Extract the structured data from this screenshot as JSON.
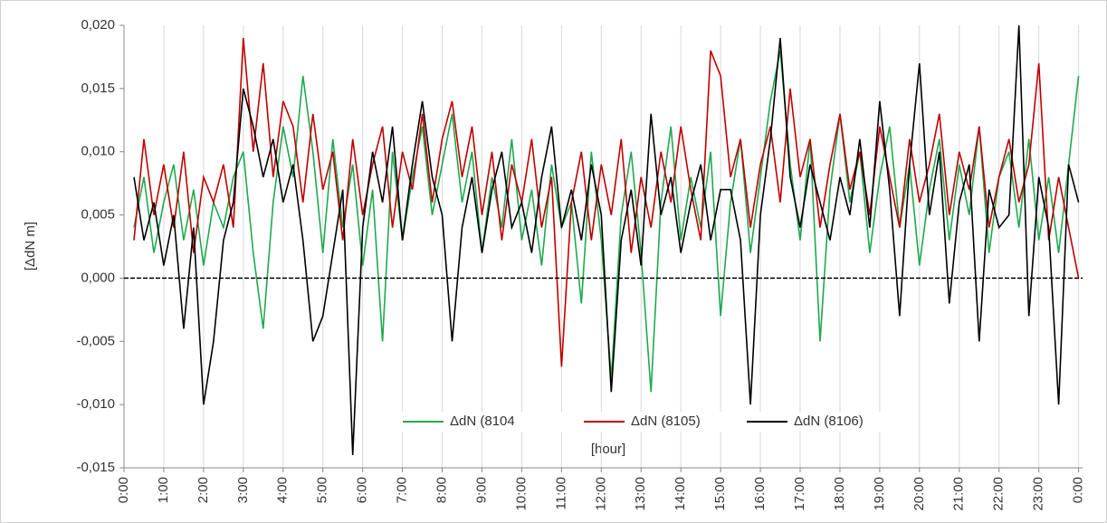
{
  "chart_data": {
    "type": "line",
    "y_label": "[ΔdN m]",
    "x_label": "[hour]",
    "x": [
      0.25,
      0.5,
      0.75,
      1,
      1.25,
      1.5,
      1.75,
      2,
      2.25,
      2.5,
      2.75,
      3,
      3.25,
      3.5,
      3.75,
      4,
      4.25,
      4.5,
      4.75,
      5,
      5.25,
      5.5,
      5.75,
      6,
      6.25,
      6.5,
      6.75,
      7,
      7.25,
      7.5,
      7.75,
      8,
      8.25,
      8.5,
      8.75,
      9,
      9.25,
      9.5,
      9.75,
      10,
      10.25,
      10.5,
      10.75,
      11,
      11.25,
      11.5,
      11.75,
      12,
      12.25,
      12.5,
      12.75,
      13,
      13.25,
      13.5,
      13.75,
      14,
      14.25,
      14.5,
      14.75,
      15,
      15.25,
      15.5,
      15.75,
      16,
      16.25,
      16.5,
      16.75,
      17,
      17.25,
      17.5,
      17.75,
      18,
      18.25,
      18.5,
      18.75,
      19,
      19.25,
      19.5,
      19.75,
      20,
      20.25,
      20.5,
      20.75,
      21,
      21.25,
      21.5,
      21.75,
      22,
      22.25,
      22.5,
      22.75,
      23,
      23.25,
      23.5,
      23.75,
      24
    ],
    "series": [
      {
        "name": "ΔdN (8104",
        "color": "#1fa84f",
        "values": [
          0.004,
          0.008,
          0.002,
          0.006,
          0.009,
          0.003,
          0.007,
          0.001,
          0.006,
          0.004,
          0.008,
          0.01,
          0.002,
          -0.004,
          0.006,
          0.012,
          0.008,
          0.016,
          0.01,
          0.002,
          0.011,
          0.004,
          0.009,
          0.001,
          0.007,
          -0.005,
          0.01,
          0.003,
          0.008,
          0.012,
          0.005,
          0.009,
          0.013,
          0.006,
          0.01,
          0.002,
          0.008,
          0.004,
          0.011,
          0.003,
          0.007,
          0.001,
          0.009,
          0.004,
          0.006,
          -0.002,
          0.01,
          0.003,
          -0.008,
          0.005,
          0.01,
          0.002,
          -0.009,
          0.006,
          0.012,
          0.003,
          0.008,
          0.004,
          0.01,
          -0.003,
          0.006,
          0.011,
          0.002,
          0.008,
          0.014,
          0.018,
          0.009,
          0.003,
          0.011,
          -0.005,
          0.007,
          0.013,
          0.006,
          0.01,
          0.002,
          0.008,
          0.012,
          0.004,
          0.009,
          0.001,
          0.007,
          0.011,
          0.003,
          0.009,
          0.005,
          0.012,
          0.002,
          0.008,
          0.01,
          0.004,
          0.011,
          0.003,
          0.008,
          0.002,
          0.009,
          0.016
        ]
      },
      {
        "name": "ΔdN (8105)",
        "color": "#c00000",
        "values": [
          0.003,
          0.011,
          0.005,
          0.009,
          0.004,
          0.01,
          0.002,
          0.008,
          0.006,
          0.009,
          0.004,
          0.019,
          0.01,
          0.017,
          0.008,
          0.014,
          0.012,
          0.006,
          0.013,
          0.007,
          0.01,
          0.003,
          0.011,
          0.005,
          0.009,
          0.012,
          0.004,
          0.01,
          0.007,
          0.013,
          0.006,
          0.011,
          0.014,
          0.008,
          0.012,
          0.005,
          0.01,
          0.003,
          0.009,
          0.006,
          0.011,
          0.004,
          0.008,
          -0.007,
          0.006,
          0.01,
          0.003,
          0.009,
          0.005,
          0.011,
          0.002,
          0.008,
          0.004,
          0.01,
          0.006,
          0.012,
          0.007,
          0.003,
          0.018,
          0.016,
          0.008,
          0.011,
          0.004,
          0.009,
          0.012,
          0.006,
          0.015,
          0.008,
          0.011,
          0.004,
          0.009,
          0.013,
          0.007,
          0.01,
          0.005,
          0.012,
          0.008,
          0.004,
          0.011,
          0.006,
          0.009,
          0.013,
          0.005,
          0.01,
          0.007,
          0.012,
          0.004,
          0.008,
          0.011,
          0.006,
          0.009,
          0.017,
          0.003,
          0.008,
          0.004,
          0.0
        ]
      },
      {
        "name": "ΔdN (8106)",
        "color": "#000000",
        "values": [
          0.008,
          0.003,
          0.006,
          0.001,
          0.005,
          -0.004,
          0.004,
          -0.01,
          -0.005,
          0.003,
          0.006,
          0.015,
          0.012,
          0.008,
          0.011,
          0.006,
          0.009,
          0.003,
          -0.005,
          -0.003,
          0.002,
          0.007,
          -0.014,
          0.004,
          0.01,
          0.006,
          0.012,
          0.003,
          0.009,
          0.014,
          0.008,
          0.005,
          -0.005,
          0.004,
          0.008,
          0.002,
          0.007,
          0.01,
          0.004,
          0.006,
          0.002,
          0.008,
          0.012,
          0.004,
          0.007,
          0.003,
          0.009,
          0.005,
          -0.009,
          0.003,
          0.007,
          0.001,
          0.013,
          0.005,
          0.008,
          0.002,
          0.006,
          0.009,
          0.003,
          0.007,
          0.007,
          0.003,
          -0.01,
          0.005,
          0.011,
          0.019,
          0.008,
          0.004,
          0.009,
          0.006,
          0.003,
          0.008,
          0.005,
          0.011,
          0.004,
          0.014,
          0.007,
          -0.003,
          0.009,
          0.017,
          0.005,
          0.01,
          -0.002,
          0.006,
          0.009,
          -0.005,
          0.007,
          0.004,
          0.005,
          0.02,
          -0.003,
          0.008,
          0.004,
          -0.01,
          0.009,
          0.006
        ]
      }
    ],
    "xlim": [
      0,
      24.1
    ],
    "xticks": [
      {
        "value": 0,
        "label": "0:00"
      },
      {
        "value": 1,
        "label": "1:00"
      },
      {
        "value": 2,
        "label": "2:00"
      },
      {
        "value": 3,
        "label": "3:00"
      },
      {
        "value": 4,
        "label": "4:00"
      },
      {
        "value": 5,
        "label": "5:00"
      },
      {
        "value": 6,
        "label": "6:00"
      },
      {
        "value": 7,
        "label": "7:00"
      },
      {
        "value": 8,
        "label": "8:00"
      },
      {
        "value": 9,
        "label": "9:00"
      },
      {
        "value": 10,
        "label": "10:00"
      },
      {
        "value": 11,
        "label": "11:00"
      },
      {
        "value": 12,
        "label": "12:00"
      },
      {
        "value": 13,
        "label": "13:00"
      },
      {
        "value": 14,
        "label": "14:00"
      },
      {
        "value": 15,
        "label": "15:00"
      },
      {
        "value": 16,
        "label": "16:00"
      },
      {
        "value": 17,
        "label": "17:00"
      },
      {
        "value": 18,
        "label": "18:00"
      },
      {
        "value": 19,
        "label": "19:00"
      },
      {
        "value": 20,
        "label": "20:00"
      },
      {
        "value": 21,
        "label": "21:00"
      },
      {
        "value": 22,
        "label": "22:00"
      },
      {
        "value": 23,
        "label": "23:00"
      },
      {
        "value": 24,
        "label": "0:00"
      }
    ],
    "ylim": [
      -0.015,
      0.02
    ],
    "yticks": [
      {
        "value": -0.015,
        "label": "-0,015"
      },
      {
        "value": -0.01,
        "label": "-0,010"
      },
      {
        "value": -0.005,
        "label": "-0,005"
      },
      {
        "value": 0,
        "label": "0,000"
      },
      {
        "value": 0.005,
        "label": "0,005"
      },
      {
        "value": 0.01,
        "label": "0,010"
      },
      {
        "value": 0.015,
        "label": "0,015"
      },
      {
        "value": 0.02,
        "label": "0,020"
      }
    ],
    "grid": "x",
    "legend": "lower center"
  }
}
